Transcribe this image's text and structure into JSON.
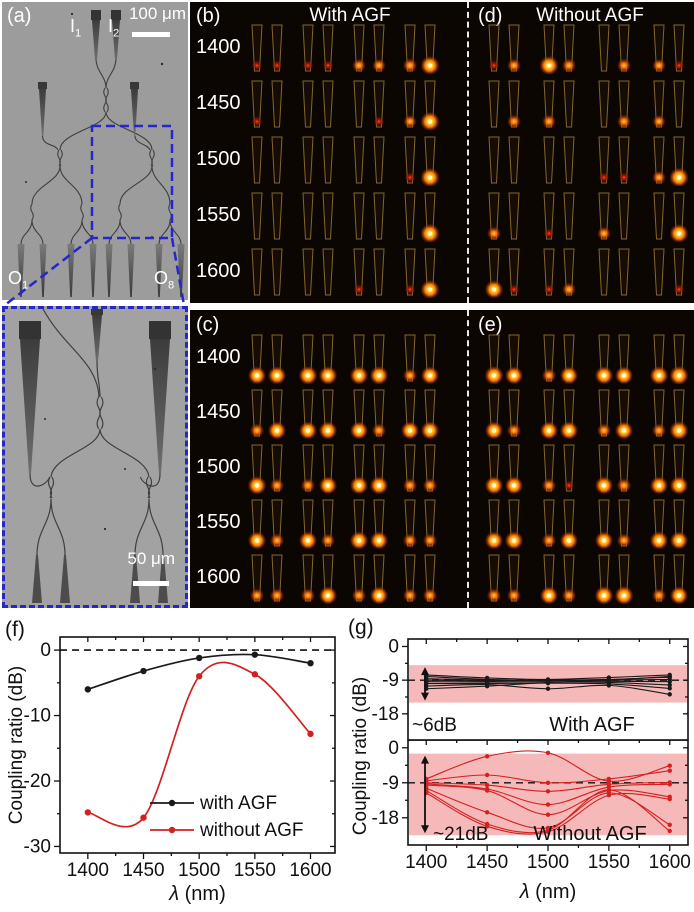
{
  "panel_a": {
    "label": "(a)",
    "i1": {
      "base": "I",
      "sub": "1"
    },
    "i2": {
      "base": "I",
      "sub": "2"
    },
    "o1": {
      "base": "O",
      "sub": "1"
    },
    "o8": {
      "base": "O",
      "sub": "8"
    },
    "scalebar_top": "100 μm",
    "scalebar_inset": "50 μm"
  },
  "ir_panels": {
    "wavelengths": [
      "1400",
      "1450",
      "1500",
      "1550",
      "1600"
    ],
    "b": {
      "label": "(b)",
      "title": "With AGF",
      "rows": [
        [
          0.3,
          0.3,
          0.25,
          0.2,
          0.45,
          0.45,
          0.65,
          0.85
        ],
        [
          0.15,
          0,
          0,
          0,
          0,
          0.15,
          0.35,
          0.9
        ],
        [
          0,
          0,
          0,
          0,
          0,
          0,
          0.12,
          0.9
        ],
        [
          0,
          0,
          0,
          0,
          0,
          0,
          0,
          0.92
        ],
        [
          0,
          0,
          0,
          0,
          0.18,
          0,
          0.3,
          0.85
        ]
      ]
    },
    "d": {
      "label": "(d)",
      "title": "Without AGF",
      "rows": [
        [
          0.3,
          0.5,
          0.9,
          0.6,
          0,
          0.55,
          0.45,
          0.12
        ],
        [
          0,
          0.5,
          0.55,
          0,
          0,
          0.55,
          0.35,
          0
        ],
        [
          0,
          0,
          0,
          0,
          0.3,
          0.3,
          0.5,
          0.95
        ],
        [
          0.55,
          0,
          0.2,
          0,
          0.5,
          0,
          0,
          0.85
        ],
        [
          0.75,
          0.3,
          0.3,
          0.5,
          0,
          0,
          0,
          0.2
        ]
      ]
    },
    "c": {
      "label": "(c)",
      "rows": [
        [
          0.7,
          0.75,
          0.85,
          0.8,
          0.75,
          0.8,
          0.6,
          0.7
        ],
        [
          0.65,
          0.7,
          0.7,
          0.75,
          0.7,
          0.65,
          0.7,
          0.75
        ],
        [
          0.8,
          0.6,
          0.65,
          0.7,
          0.7,
          0.75,
          0.6,
          0.65
        ],
        [
          0.7,
          0.65,
          0.7,
          0.6,
          0.75,
          0.7,
          0.65,
          0.6
        ],
        [
          0.6,
          0.65,
          0.6,
          0.7,
          0.65,
          0.7,
          0.6,
          0.65
        ]
      ]
    },
    "e": {
      "label": "(e)",
      "rows": [
        [
          0.85,
          0.7,
          0.65,
          0.7,
          0.75,
          0.7,
          0.8,
          0.9
        ],
        [
          0.7,
          0.65,
          0.7,
          0.75,
          0.65,
          0.7,
          0.6,
          0.85
        ],
        [
          0.75,
          0.7,
          0.6,
          0.15,
          0.7,
          0.65,
          0.7,
          0.75
        ],
        [
          0.7,
          0.75,
          0.65,
          0.7,
          0.7,
          0.65,
          0.75,
          0.7
        ],
        [
          0.65,
          0.6,
          0.7,
          0.65,
          0.8,
          0.85,
          0.6,
          0.7
        ]
      ]
    }
  },
  "panel_f_label": "(f)",
  "panel_g_label": "(g)",
  "colors": {
    "with_agf": "#1a1a1a",
    "without_agf": "#d42020",
    "band_pink": "#f6b9b9",
    "blue_dash": "#2626cc",
    "taper_outline": "#83662f"
  },
  "chart_data": [
    {
      "id": "f",
      "type": "line",
      "xlabel": "λ (nm)",
      "ylabel": "Coupling ratio (dB)",
      "x": [
        1400,
        1450,
        1500,
        1550,
        1600
      ],
      "series": [
        {
          "name": "with AGF",
          "color": "#1a1a1a",
          "values": [
            -6.0,
            -3.2,
            -1.2,
            -0.7,
            -2.0
          ]
        },
        {
          "name": "without AGF",
          "color": "#d42020",
          "values": [
            -24.8,
            -25.6,
            -4.0,
            -3.7,
            -12.8
          ]
        }
      ],
      "xlim": [
        1375,
        1622
      ],
      "ylim": [
        2,
        -31
      ],
      "xticks": [
        1400,
        1450,
        1500,
        1550,
        1600
      ],
      "yticks": [
        0,
        -10,
        -20,
        -30
      ],
      "ref_line_y": 0,
      "grid": false,
      "legend_position": "lower right"
    },
    {
      "id": "g_top",
      "type": "line",
      "xlabel": "",
      "ylabel": "Coupling ratio (dB)",
      "panel_text": "With AGF",
      "spread_label": "~6dB",
      "band": [
        -5,
        -15
      ],
      "x": [
        1400,
        1450,
        1500,
        1550,
        1600
      ],
      "series_color": "#1a1a1a",
      "series": [
        {
          "values": [
            -7.6,
            -8.4,
            -8.8,
            -8.3,
            -7.6
          ]
        },
        {
          "values": [
            -8.0,
            -8.8,
            -9.0,
            -8.8,
            -8.2
          ]
        },
        {
          "values": [
            -8.6,
            -9.0,
            -9.1,
            -9.0,
            -8.8
          ]
        },
        {
          "values": [
            -9.0,
            -9.2,
            -9.0,
            -9.3,
            -9.4
          ]
        },
        {
          "values": [
            -9.4,
            -9.5,
            -9.4,
            -9.6,
            -10.3
          ]
        },
        {
          "values": [
            -9.9,
            -9.9,
            -9.8,
            -10.0,
            -11.2
          ]
        },
        {
          "values": [
            -10.6,
            -10.2,
            -11.3,
            -10.4,
            -12.8
          ]
        },
        {
          "values": [
            -11.3,
            -10.6,
            -9.6,
            -9.0,
            -8.0
          ]
        }
      ],
      "xlim": [
        1385,
        1615
      ],
      "ylim": [
        2,
        -25
      ],
      "xticks": [
        1400,
        1450,
        1500,
        1550,
        1600
      ],
      "yticks": [
        0,
        -9,
        -18
      ],
      "ref_line_y": -9,
      "grid": false
    },
    {
      "id": "g_bottom",
      "type": "line",
      "xlabel": "λ (nm)",
      "ylabel": "Coupling ratio (dB)",
      "panel_text": "Without AGF",
      "spread_label": "~21dB",
      "band": [
        -1.5,
        -22.5
      ],
      "x": [
        1400,
        1450,
        1500,
        1550,
        1600
      ],
      "series_color": "#d42020",
      "series": [
        {
          "values": [
            -8.0,
            -2.2,
            -1.3,
            -8.6,
            -4.6
          ]
        },
        {
          "values": [
            -8.5,
            -7.0,
            -9.0,
            -8.0,
            -5.9
          ]
        },
        {
          "values": [
            -9.0,
            -9.6,
            -11.2,
            -9.4,
            -8.9
          ]
        },
        {
          "values": [
            -9.3,
            -10.6,
            -14.6,
            -10.1,
            -9.4
          ]
        },
        {
          "values": [
            -9.6,
            -11.0,
            -17.2,
            -11.0,
            -12.6
          ]
        },
        {
          "values": [
            -10.4,
            -16.6,
            -20.6,
            -11.6,
            -19.8
          ]
        },
        {
          "values": [
            -11.0,
            -19.6,
            -21.2,
            -10.8,
            -21.4
          ]
        },
        {
          "values": [
            -11.6,
            -20.2,
            -21.6,
            -12.2,
            -13.2
          ]
        }
      ],
      "xlim": [
        1385,
        1615
      ],
      "ylim": [
        2,
        -25
      ],
      "xticks": [
        1400,
        1450,
        1500,
        1550,
        1600
      ],
      "yticks": [
        0,
        -9,
        -18
      ],
      "ref_line_y": -9,
      "grid": false
    }
  ]
}
